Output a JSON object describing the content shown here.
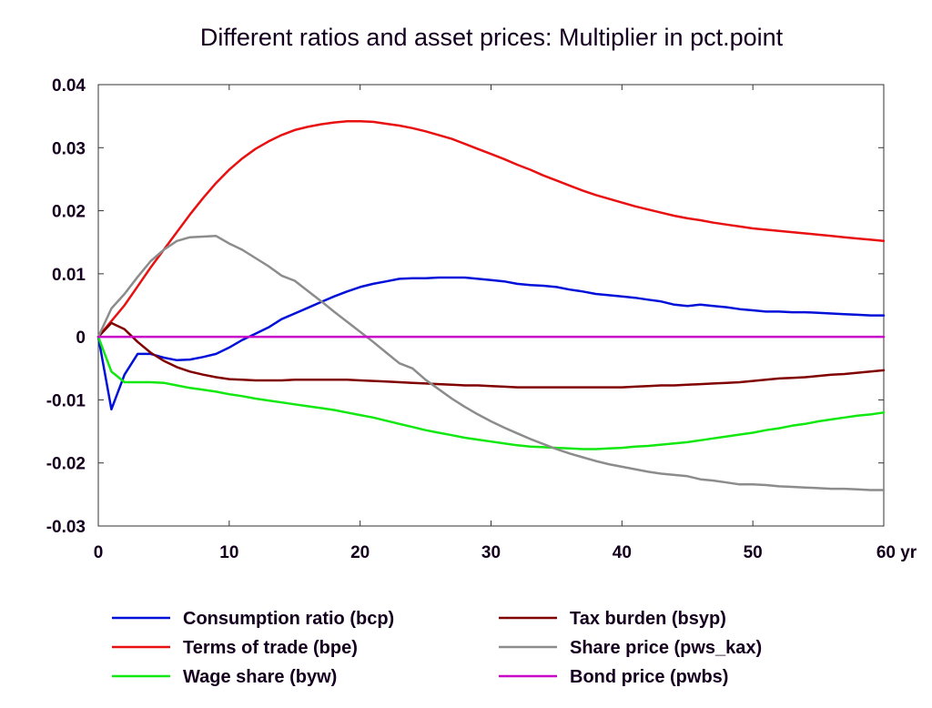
{
  "chart_data": {
    "type": "line",
    "title": "Different ratios and asset prices: Multiplier in pct.point",
    "xlabel": "",
    "ylabel": "",
    "xlim": [
      0,
      60
    ],
    "ylim": [
      -0.03,
      0.04
    ],
    "x_ticks": [
      0,
      10,
      20,
      30,
      40,
      50,
      60
    ],
    "x_tick_labels": [
      "0",
      "10",
      "20",
      "30",
      "40",
      "50",
      "60 yr"
    ],
    "y_ticks": [
      0.04,
      0.03,
      0.02,
      0.01,
      0,
      -0.01,
      -0.02,
      -0.03
    ],
    "y_tick_labels": [
      "0.04",
      "0.03",
      "0.02",
      "0.01",
      "0",
      "-0.01",
      "-0.02",
      "-0.03"
    ],
    "grid": false,
    "legend_position": "bottom",
    "series": [
      {
        "name": "Consumption ratio (bcp)",
        "color": "#0010d8",
        "points": [
          [
            0,
            0
          ],
          [
            1,
            -0.0115
          ],
          [
            2,
            -0.006
          ],
          [
            3,
            -0.0027
          ],
          [
            4,
            -0.0027
          ],
          [
            5,
            -0.0033
          ],
          [
            6,
            -0.0037
          ],
          [
            7,
            -0.0036
          ],
          [
            8,
            -0.0032
          ],
          [
            9,
            -0.0027
          ],
          [
            10,
            -0.0017
          ],
          [
            11,
            -0.0005
          ],
          [
            12,
            0.0005
          ],
          [
            13,
            0.0015
          ],
          [
            14,
            0.0028
          ],
          [
            15,
            0.0037
          ],
          [
            16,
            0.0046
          ],
          [
            17,
            0.0055
          ],
          [
            18,
            0.0064
          ],
          [
            19,
            0.0072
          ],
          [
            20,
            0.0079
          ],
          [
            21,
            0.0084
          ],
          [
            22,
            0.0088
          ],
          [
            23,
            0.0092
          ],
          [
            24,
            0.0093
          ],
          [
            25,
            0.0093
          ],
          [
            26,
            0.0094
          ],
          [
            27,
            0.0094
          ],
          [
            28,
            0.0094
          ],
          [
            29,
            0.0092
          ],
          [
            30,
            0.009
          ],
          [
            31,
            0.0088
          ],
          [
            32,
            0.0084
          ],
          [
            33,
            0.0082
          ],
          [
            34,
            0.0081
          ],
          [
            35,
            0.0079
          ],
          [
            36,
            0.0075
          ],
          [
            37,
            0.0072
          ],
          [
            38,
            0.0068
          ],
          [
            39,
            0.0066
          ],
          [
            40,
            0.0064
          ],
          [
            41,
            0.0062
          ],
          [
            42,
            0.0059
          ],
          [
            43,
            0.0056
          ],
          [
            44,
            0.0051
          ],
          [
            45,
            0.0049
          ],
          [
            46,
            0.0051
          ],
          [
            47,
            0.0049
          ],
          [
            48,
            0.0047
          ],
          [
            49,
            0.0044
          ],
          [
            50,
            0.0042
          ],
          [
            51,
            0.004
          ],
          [
            52,
            0.004
          ],
          [
            53,
            0.0039
          ],
          [
            54,
            0.0039
          ],
          [
            55,
            0.0038
          ],
          [
            56,
            0.0037
          ],
          [
            57,
            0.0036
          ],
          [
            58,
            0.0035
          ],
          [
            59,
            0.0034
          ],
          [
            60,
            0.0034
          ]
        ]
      },
      {
        "name": "Terms of trade (bpe)",
        "color": "#e81010",
        "points": [
          [
            0,
            0
          ],
          [
            1,
            0.0025
          ],
          [
            2,
            0.005
          ],
          [
            3,
            0.008
          ],
          [
            4,
            0.011
          ],
          [
            5,
            0.0138
          ],
          [
            6,
            0.0166
          ],
          [
            7,
            0.0194
          ],
          [
            8,
            0.022
          ],
          [
            9,
            0.0244
          ],
          [
            10,
            0.0265
          ],
          [
            11,
            0.0283
          ],
          [
            12,
            0.0298
          ],
          [
            13,
            0.031
          ],
          [
            14,
            0.032
          ],
          [
            15,
            0.0328
          ],
          [
            16,
            0.0333
          ],
          [
            17,
            0.0337
          ],
          [
            18,
            0.034
          ],
          [
            19,
            0.0342
          ],
          [
            20,
            0.0342
          ],
          [
            21,
            0.0341
          ],
          [
            22,
            0.0338
          ],
          [
            23,
            0.0335
          ],
          [
            24,
            0.0331
          ],
          [
            25,
            0.0326
          ],
          [
            26,
            0.032
          ],
          [
            27,
            0.0314
          ],
          [
            28,
            0.0306
          ],
          [
            29,
            0.0298
          ],
          [
            30,
            0.029
          ],
          [
            31,
            0.0282
          ],
          [
            32,
            0.0273
          ],
          [
            33,
            0.0265
          ],
          [
            34,
            0.0256
          ],
          [
            35,
            0.0248
          ],
          [
            36,
            0.024
          ],
          [
            37,
            0.0232
          ],
          [
            38,
            0.0225
          ],
          [
            39,
            0.0219
          ],
          [
            40,
            0.0213
          ],
          [
            41,
            0.0207
          ],
          [
            42,
            0.0202
          ],
          [
            43,
            0.0197
          ],
          [
            44,
            0.0192
          ],
          [
            45,
            0.0188
          ],
          [
            46,
            0.0185
          ],
          [
            47,
            0.0181
          ],
          [
            48,
            0.0178
          ],
          [
            49,
            0.0175
          ],
          [
            50,
            0.0172
          ],
          [
            51,
            0.017
          ],
          [
            52,
            0.0168
          ],
          [
            53,
            0.0166
          ],
          [
            54,
            0.0164
          ],
          [
            55,
            0.0162
          ],
          [
            56,
            0.016
          ],
          [
            57,
            0.0158
          ],
          [
            58,
            0.0156
          ],
          [
            59,
            0.0154
          ],
          [
            60,
            0.0152
          ]
        ]
      },
      {
        "name": "Wage share (byw)",
        "color": "#10e810",
        "points": [
          [
            0,
            0
          ],
          [
            1,
            -0.0055
          ],
          [
            2,
            -0.0072
          ],
          [
            3,
            -0.0072
          ],
          [
            4,
            -0.0072
          ],
          [
            5,
            -0.0073
          ],
          [
            6,
            -0.0077
          ],
          [
            7,
            -0.0081
          ],
          [
            8,
            -0.0084
          ],
          [
            9,
            -0.0087
          ],
          [
            10,
            -0.0091
          ],
          [
            11,
            -0.0094
          ],
          [
            12,
            -0.0098
          ],
          [
            13,
            -0.0101
          ],
          [
            14,
            -0.0104
          ],
          [
            15,
            -0.0107
          ],
          [
            16,
            -0.011
          ],
          [
            17,
            -0.0113
          ],
          [
            18,
            -0.0116
          ],
          [
            19,
            -0.012
          ],
          [
            20,
            -0.0124
          ],
          [
            21,
            -0.0128
          ],
          [
            22,
            -0.0133
          ],
          [
            23,
            -0.0138
          ],
          [
            24,
            -0.0143
          ],
          [
            25,
            -0.0148
          ],
          [
            26,
            -0.0152
          ],
          [
            27,
            -0.0156
          ],
          [
            28,
            -0.016
          ],
          [
            29,
            -0.0163
          ],
          [
            30,
            -0.0166
          ],
          [
            31,
            -0.0169
          ],
          [
            32,
            -0.0172
          ],
          [
            33,
            -0.0174
          ],
          [
            34,
            -0.0175
          ],
          [
            35,
            -0.0176
          ],
          [
            36,
            -0.0177
          ],
          [
            37,
            -0.0178
          ],
          [
            38,
            -0.0178
          ],
          [
            39,
            -0.0177
          ],
          [
            40,
            -0.0176
          ],
          [
            41,
            -0.0174
          ],
          [
            42,
            -0.0173
          ],
          [
            43,
            -0.0171
          ],
          [
            44,
            -0.0169
          ],
          [
            45,
            -0.0167
          ],
          [
            46,
            -0.0164
          ],
          [
            47,
            -0.0161
          ],
          [
            48,
            -0.0158
          ],
          [
            49,
            -0.0155
          ],
          [
            50,
            -0.0152
          ],
          [
            51,
            -0.0148
          ],
          [
            52,
            -0.0145
          ],
          [
            53,
            -0.0141
          ],
          [
            54,
            -0.0138
          ],
          [
            55,
            -0.0134
          ],
          [
            56,
            -0.0131
          ],
          [
            57,
            -0.0128
          ],
          [
            58,
            -0.0125
          ],
          [
            59,
            -0.0123
          ],
          [
            60,
            -0.012
          ]
        ]
      },
      {
        "name": "Tax burden (bsyp)",
        "color": "#800000",
        "points": [
          [
            0,
            0
          ],
          [
            1,
            0.0022
          ],
          [
            2,
            0.0012
          ],
          [
            3,
            -0.0008
          ],
          [
            4,
            -0.0025
          ],
          [
            5,
            -0.0038
          ],
          [
            6,
            -0.0048
          ],
          [
            7,
            -0.0055
          ],
          [
            8,
            -0.006
          ],
          [
            9,
            -0.0064
          ],
          [
            10,
            -0.0067
          ],
          [
            11,
            -0.0068
          ],
          [
            12,
            -0.0069
          ],
          [
            13,
            -0.0069
          ],
          [
            14,
            -0.0069
          ],
          [
            15,
            -0.0068
          ],
          [
            16,
            -0.0068
          ],
          [
            17,
            -0.0068
          ],
          [
            18,
            -0.0068
          ],
          [
            19,
            -0.0068
          ],
          [
            20,
            -0.0069
          ],
          [
            21,
            -0.007
          ],
          [
            22,
            -0.0071
          ],
          [
            23,
            -0.0072
          ],
          [
            24,
            -0.0073
          ],
          [
            25,
            -0.0074
          ],
          [
            26,
            -0.0075
          ],
          [
            27,
            -0.0076
          ],
          [
            28,
            -0.0077
          ],
          [
            29,
            -0.0077
          ],
          [
            30,
            -0.0078
          ],
          [
            31,
            -0.0079
          ],
          [
            32,
            -0.008
          ],
          [
            33,
            -0.008
          ],
          [
            34,
            -0.008
          ],
          [
            35,
            -0.008
          ],
          [
            36,
            -0.008
          ],
          [
            37,
            -0.008
          ],
          [
            38,
            -0.008
          ],
          [
            39,
            -0.008
          ],
          [
            40,
            -0.008
          ],
          [
            41,
            -0.0079
          ],
          [
            42,
            -0.0078
          ],
          [
            43,
            -0.0077
          ],
          [
            44,
            -0.0077
          ],
          [
            45,
            -0.0076
          ],
          [
            46,
            -0.0075
          ],
          [
            47,
            -0.0074
          ],
          [
            48,
            -0.0073
          ],
          [
            49,
            -0.0072
          ],
          [
            50,
            -0.007
          ],
          [
            51,
            -0.0068
          ],
          [
            52,
            -0.0066
          ],
          [
            53,
            -0.0065
          ],
          [
            54,
            -0.0064
          ],
          [
            55,
            -0.0062
          ],
          [
            56,
            -0.006
          ],
          [
            57,
            -0.0059
          ],
          [
            58,
            -0.0057
          ],
          [
            59,
            -0.0055
          ],
          [
            60,
            -0.0053
          ]
        ]
      },
      {
        "name": "Share price (pws_kax)",
        "color": "#8c8c8c",
        "points": [
          [
            0,
            0
          ],
          [
            1,
            0.0045
          ],
          [
            2,
            0.0068
          ],
          [
            3,
            0.0095
          ],
          [
            4,
            0.012
          ],
          [
            5,
            0.0138
          ],
          [
            6,
            0.0152
          ],
          [
            7,
            0.0158
          ],
          [
            8,
            0.0159
          ],
          [
            9,
            0.016
          ],
          [
            10,
            0.0148
          ],
          [
            11,
            0.0138
          ],
          [
            12,
            0.0125
          ],
          [
            13,
            0.0112
          ],
          [
            14,
            0.0097
          ],
          [
            15,
            0.0089
          ],
          [
            16,
            0.0073
          ],
          [
            17,
            0.0057
          ],
          [
            18,
            0.004
          ],
          [
            19,
            0.0024
          ],
          [
            20,
            0.0008
          ],
          [
            21,
            -0.0008
          ],
          [
            22,
            -0.0025
          ],
          [
            23,
            -0.0042
          ],
          [
            24,
            -0.005
          ],
          [
            25,
            -0.0068
          ],
          [
            26,
            -0.0083
          ],
          [
            27,
            -0.0098
          ],
          [
            28,
            -0.0111
          ],
          [
            29,
            -0.0123
          ],
          [
            30,
            -0.0134
          ],
          [
            31,
            -0.0144
          ],
          [
            32,
            -0.0153
          ],
          [
            33,
            -0.0162
          ],
          [
            34,
            -0.017
          ],
          [
            35,
            -0.0178
          ],
          [
            36,
            -0.0185
          ],
          [
            37,
            -0.0191
          ],
          [
            38,
            -0.0197
          ],
          [
            39,
            -0.0202
          ],
          [
            40,
            -0.0206
          ],
          [
            41,
            -0.021
          ],
          [
            42,
            -0.0214
          ],
          [
            43,
            -0.0217
          ],
          [
            44,
            -0.0219
          ],
          [
            45,
            -0.0221
          ],
          [
            46,
            -0.0226
          ],
          [
            47,
            -0.0228
          ],
          [
            48,
            -0.0231
          ],
          [
            49,
            -0.0234
          ],
          [
            50,
            -0.0234
          ],
          [
            51,
            -0.0235
          ],
          [
            52,
            -0.0237
          ],
          [
            53,
            -0.0238
          ],
          [
            54,
            -0.0239
          ],
          [
            55,
            -0.024
          ],
          [
            56,
            -0.0241
          ],
          [
            57,
            -0.0241
          ],
          [
            58,
            -0.0242
          ],
          [
            59,
            -0.0243
          ],
          [
            60,
            -0.0243
          ]
        ]
      },
      {
        "name": "Bond price (pwbs)",
        "color": "#c800c8",
        "points": [
          [
            0,
            0
          ],
          [
            60,
            0
          ]
        ]
      }
    ]
  }
}
